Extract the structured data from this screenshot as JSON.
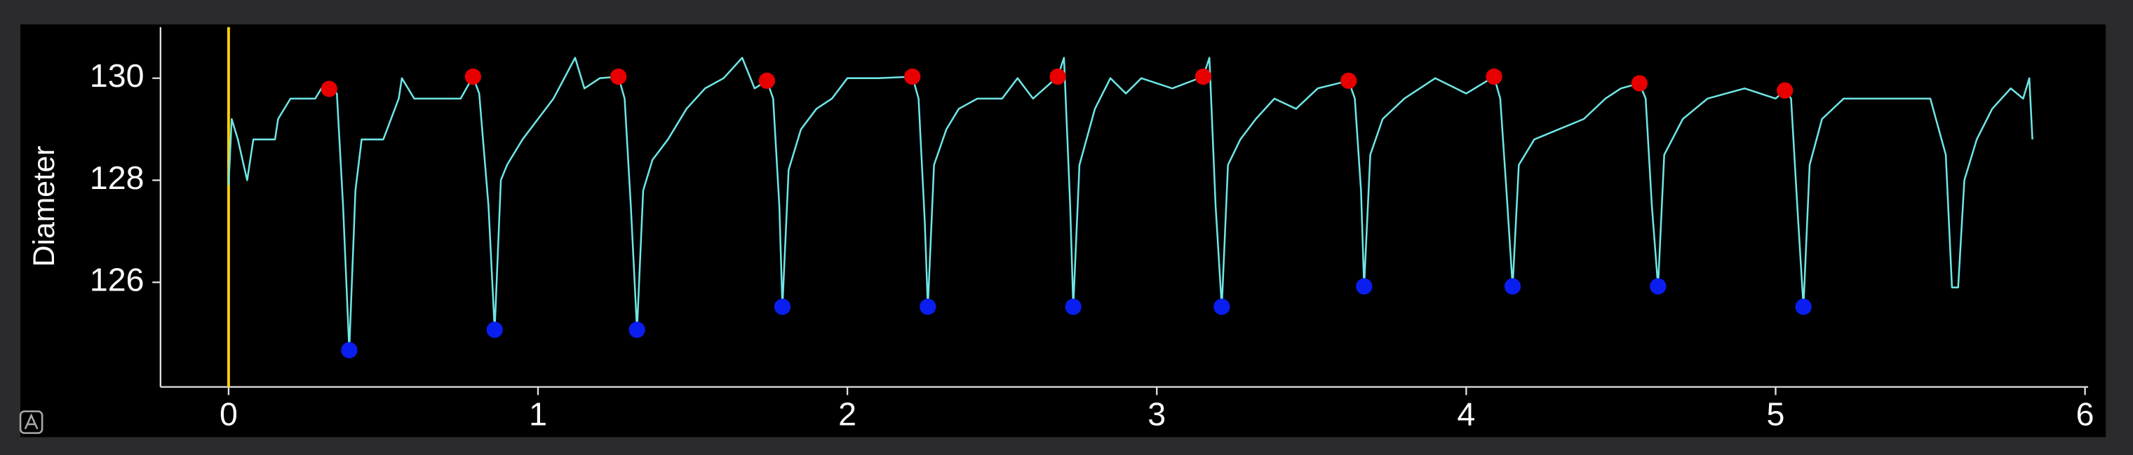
{
  "chart_data": {
    "type": "line",
    "ylabel": "Diameter",
    "xlim": [
      -0.22,
      6.01
    ],
    "ylim": [
      123.95,
      131.0
    ],
    "xticks": [
      0,
      1,
      2,
      3,
      4,
      5,
      6
    ],
    "yticks": [
      126,
      128,
      130
    ],
    "vline": {
      "x": 0,
      "color": "#ffd400"
    },
    "series": [
      {
        "type": "line",
        "color": "#6fe6e6",
        "x": [
          0.0,
          0.01,
          0.03,
          0.06,
          0.08,
          0.15,
          0.16,
          0.2,
          0.28,
          0.3,
          0.325,
          0.35,
          0.37,
          0.39,
          0.41,
          0.43,
          0.5,
          0.55,
          0.56,
          0.6,
          0.75,
          0.79,
          0.81,
          0.84,
          0.86,
          0.88,
          0.9,
          0.95,
          1.0,
          1.05,
          1.12,
          1.15,
          1.2,
          1.26,
          1.28,
          1.3,
          1.32,
          1.34,
          1.37,
          1.42,
          1.48,
          1.54,
          1.6,
          1.66,
          1.7,
          1.74,
          1.76,
          1.78,
          1.79,
          1.81,
          1.85,
          1.9,
          1.95,
          2.0,
          2.1,
          2.21,
          2.23,
          2.25,
          2.26,
          2.28,
          2.32,
          2.36,
          2.42,
          2.5,
          2.55,
          2.6,
          2.68,
          2.7,
          2.72,
          2.73,
          2.75,
          2.8,
          2.85,
          2.9,
          2.95,
          3.05,
          3.15,
          3.17,
          3.19,
          3.21,
          3.23,
          3.27,
          3.32,
          3.38,
          3.45,
          3.52,
          3.62,
          3.64,
          3.66,
          3.67,
          3.69,
          3.73,
          3.8,
          3.9,
          4.0,
          4.09,
          4.11,
          4.13,
          4.15,
          4.17,
          4.22,
          4.3,
          4.38,
          4.45,
          4.5,
          4.56,
          4.58,
          4.6,
          4.62,
          4.64,
          4.7,
          4.78,
          4.9,
          5.0,
          5.03,
          5.05,
          5.07,
          5.09,
          5.11,
          5.15,
          5.22,
          5.35,
          5.5,
          5.55,
          5.57,
          5.59,
          5.61,
          5.65,
          5.7,
          5.76,
          5.8,
          5.82,
          5.83
        ],
        "values": [
          127.9,
          129.2,
          128.8,
          128.0,
          128.8,
          128.8,
          129.2,
          129.6,
          129.6,
          129.8,
          129.79,
          129.7,
          127.5,
          124.67,
          127.8,
          128.8,
          128.8,
          129.6,
          130.0,
          129.6,
          129.6,
          130.03,
          129.7,
          127.5,
          125.07,
          128.0,
          128.3,
          128.8,
          129.2,
          129.6,
          130.4,
          129.8,
          130.0,
          130.03,
          129.6,
          127.5,
          125.07,
          127.8,
          128.4,
          128.8,
          129.4,
          129.8,
          130.0,
          130.4,
          129.8,
          129.95,
          129.6,
          127.5,
          125.52,
          128.2,
          129.0,
          129.4,
          129.6,
          130.0,
          130.0,
          130.03,
          129.6,
          127.2,
          125.52,
          128.3,
          129.0,
          129.4,
          129.6,
          129.6,
          130.0,
          129.6,
          130.03,
          130.4,
          127.5,
          125.52,
          128.3,
          129.4,
          130.0,
          129.7,
          130.0,
          129.8,
          130.03,
          130.4,
          127.5,
          125.52,
          128.3,
          128.8,
          129.2,
          129.6,
          129.4,
          129.8,
          129.95,
          129.6,
          127.8,
          125.92,
          128.5,
          129.2,
          129.6,
          130.0,
          129.7,
          130.03,
          129.6,
          127.8,
          125.92,
          128.3,
          128.8,
          129.0,
          129.2,
          129.6,
          129.8,
          129.9,
          129.6,
          127.5,
          125.92,
          128.5,
          129.2,
          129.6,
          129.8,
          129.6,
          129.76,
          129.6,
          127.5,
          125.52,
          128.3,
          129.2,
          129.6,
          129.6,
          129.6,
          128.5,
          125.9,
          125.9,
          128.0,
          128.8,
          129.4,
          129.8,
          129.6,
          130.0,
          128.8
        ]
      },
      {
        "type": "scatter",
        "color": "#e80000",
        "x": [
          0.325,
          0.79,
          1.26,
          1.74,
          2.21,
          2.68,
          3.15,
          3.62,
          4.09,
          4.56,
          5.03
        ],
        "values": [
          129.79,
          130.03,
          130.03,
          129.95,
          130.03,
          130.03,
          130.03,
          129.95,
          130.03,
          129.9,
          129.76
        ]
      },
      {
        "type": "scatter",
        "color": "#0a1ef0",
        "x": [
          0.39,
          0.86,
          1.32,
          1.79,
          2.26,
          2.73,
          3.21,
          3.67,
          4.15,
          4.62,
          5.09
        ],
        "values": [
          124.67,
          125.07,
          125.07,
          125.52,
          125.52,
          125.52,
          125.52,
          125.92,
          125.92,
          125.92,
          125.52
        ]
      }
    ]
  }
}
